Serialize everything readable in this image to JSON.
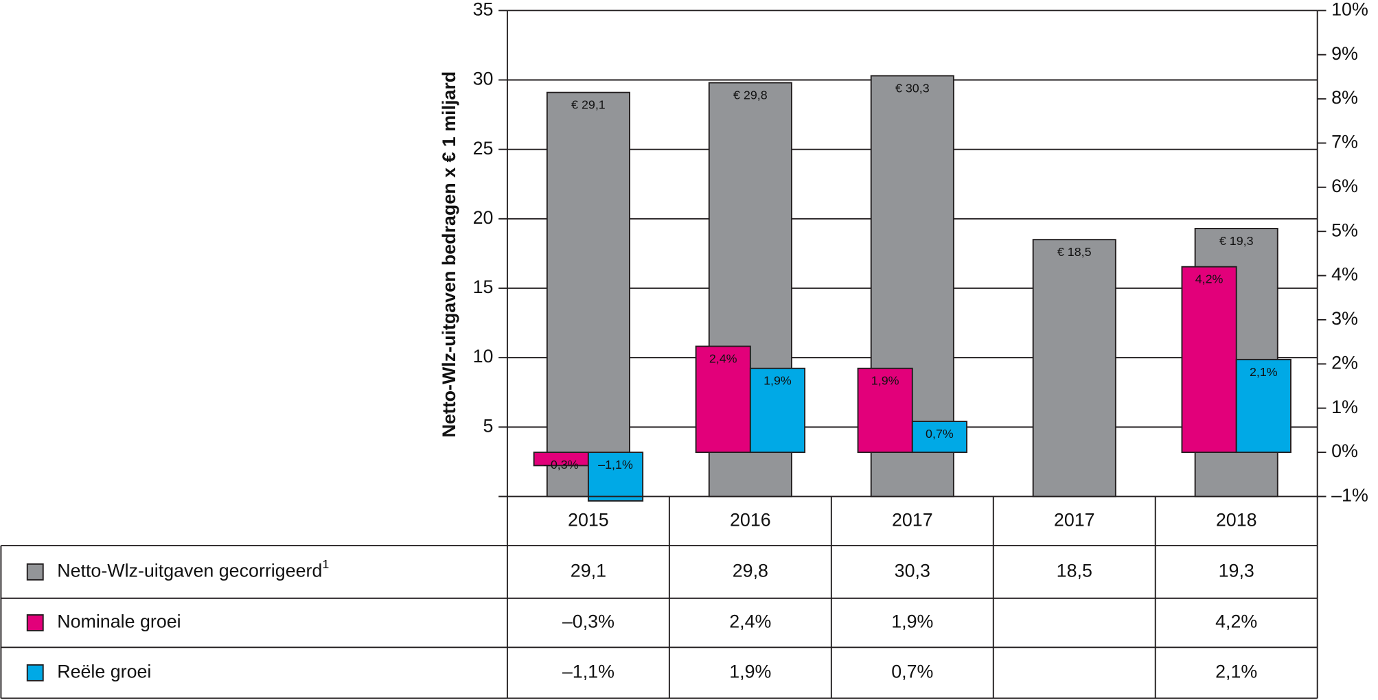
{
  "chart_data": {
    "type": "bar",
    "y_label": "Netto-Wlz-uitgaven bedragen x € 1 miljard",
    "categories": [
      "2015",
      "2016",
      "2017",
      "2017",
      "2018"
    ],
    "ylim": [
      0,
      35
    ],
    "yticks": [
      5,
      10,
      15,
      20,
      25,
      30,
      35
    ],
    "y2lim": [
      -1,
      10
    ],
    "y2ticks": [
      {
        "value": -1,
        "label": "–1%"
      },
      {
        "value": 0,
        "label": "0%"
      },
      {
        "value": 1,
        "label": "1%"
      },
      {
        "value": 2,
        "label": "2%"
      },
      {
        "value": 3,
        "label": "3%"
      },
      {
        "value": 4,
        "label": "4%"
      },
      {
        "value": 5,
        "label": "5%"
      },
      {
        "value": 6,
        "label": "6%"
      },
      {
        "value": 7,
        "label": "7%"
      },
      {
        "value": 8,
        "label": "8%"
      },
      {
        "value": 9,
        "label": "9%"
      },
      {
        "value": 10,
        "label": "10%"
      }
    ],
    "grid": true,
    "series": [
      {
        "name": "Netto-Wlz-uitgaven gecorrigeerd",
        "name_superscript": "1",
        "color": "#939598",
        "values": [
          29.1,
          29.8,
          30.3,
          18.5,
          19.3
        ],
        "value_labels": [
          "€ 29,1",
          "€ 29,8",
          "€ 30,3",
          "€ 18,5",
          "€ 19,3"
        ],
        "table_labels": [
          "29,1",
          "29,8",
          "30,3",
          "18,5",
          "19,3"
        ]
      },
      {
        "name": "Nominale groei",
        "color": "#e2007a",
        "axis": "y2",
        "values": [
          -0.3,
          2.4,
          1.9,
          null,
          4.2
        ],
        "value_labels": [
          "–0,3%",
          "2,4%",
          "1,9%",
          null,
          "4,2%"
        ],
        "table_labels": [
          "–0,3%",
          "2,4%",
          "1,9%",
          null,
          "4,2%"
        ]
      },
      {
        "name": "Reële groei",
        "color": "#00a9e6",
        "axis": "y2",
        "values": [
          -1.1,
          1.9,
          0.7,
          null,
          2.1
        ],
        "value_labels": [
          "–1,1%",
          "1,9%",
          "0,7%",
          null,
          "2,1%"
        ],
        "table_labels": [
          "–1,1%",
          "1,9%",
          "0,7%",
          null,
          "2,1%"
        ]
      }
    ]
  }
}
